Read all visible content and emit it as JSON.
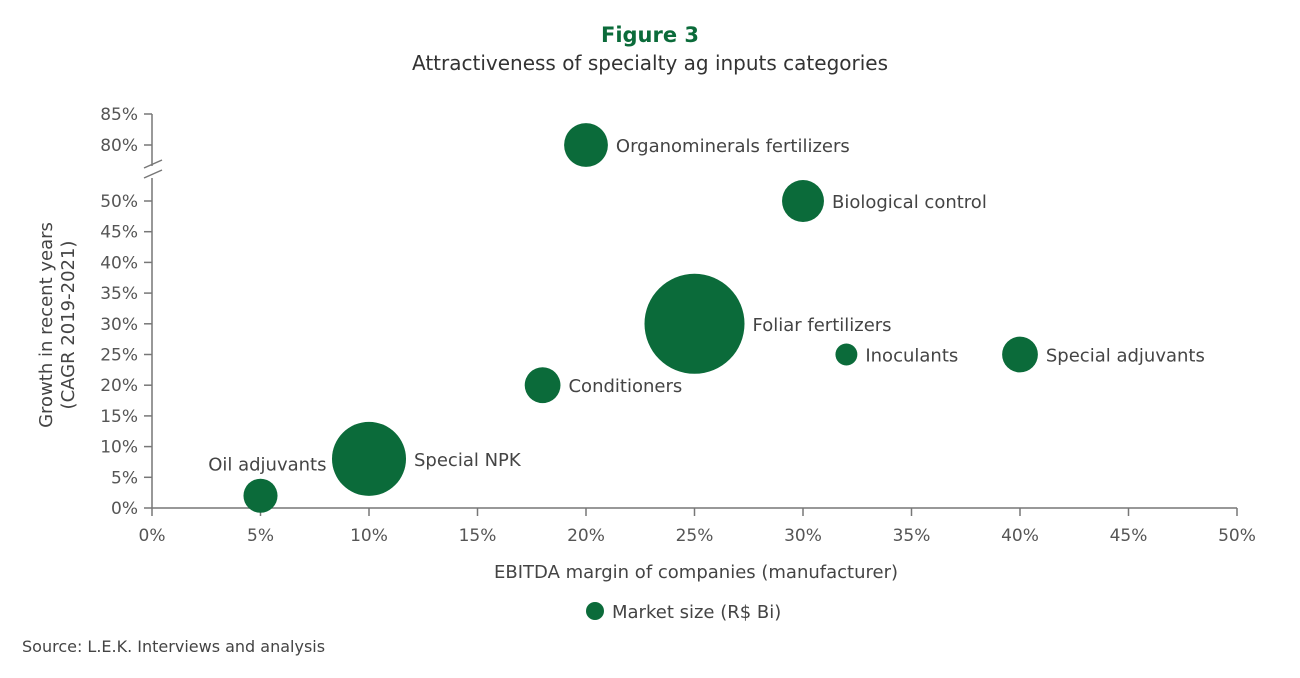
{
  "chart_data": {
    "type": "bubble",
    "title": "Figure 3",
    "subtitle": "Attractiveness of specialty ag inputs categories",
    "xlabel": "EBITDA margin of companies (manufacturer)",
    "ylabel": [
      "Growth in recent years",
      "(CAGR 2019-2021)"
    ],
    "xlim": [
      0,
      50
    ],
    "ylim": [
      0,
      85
    ],
    "y_axis_break": [
      50,
      80
    ],
    "x_ticks": [
      "0%",
      "5%",
      "10%",
      "15%",
      "20%",
      "25%",
      "30%",
      "35%",
      "40%",
      "45%",
      "50%"
    ],
    "y_ticks": [
      "0%",
      "5%",
      "10%",
      "15%",
      "20%",
      "25%",
      "30%",
      "35%",
      "40%",
      "45%",
      "50%",
      "80%",
      "85%"
    ],
    "grid": false,
    "legend": {
      "label": "Market size (R$ Bi)",
      "position": "bottom"
    },
    "bubble_color": "#0b6b3a",
    "size_note_relative": true,
    "points": [
      {
        "name": "Organominerals fertilizers",
        "x": 20,
        "y": 80,
        "size": 4.8,
        "label_pos": "right"
      },
      {
        "name": "Biological control",
        "x": 30,
        "y": 50,
        "size": 4.4,
        "label_pos": "right"
      },
      {
        "name": "Foliar fertilizers",
        "x": 25,
        "y": 30,
        "size": 25,
        "label_pos": "right"
      },
      {
        "name": "Inoculants",
        "x": 32,
        "y": 25,
        "size": 1.2,
        "label_pos": "right"
      },
      {
        "name": "Special adjuvants",
        "x": 40,
        "y": 25,
        "size": 3.2,
        "label_pos": "right"
      },
      {
        "name": "Conditioners",
        "x": 18,
        "y": 20,
        "size": 3.2,
        "label_pos": "right"
      },
      {
        "name": "Special NPK",
        "x": 10,
        "y": 8,
        "size": 13.7,
        "label_pos": "right"
      },
      {
        "name": "Oil adjuvants",
        "x": 5,
        "y": 2,
        "size": 2.9,
        "label_pos": "top-left"
      }
    ]
  },
  "source": "Source: L.E.K. Interviews and analysis"
}
